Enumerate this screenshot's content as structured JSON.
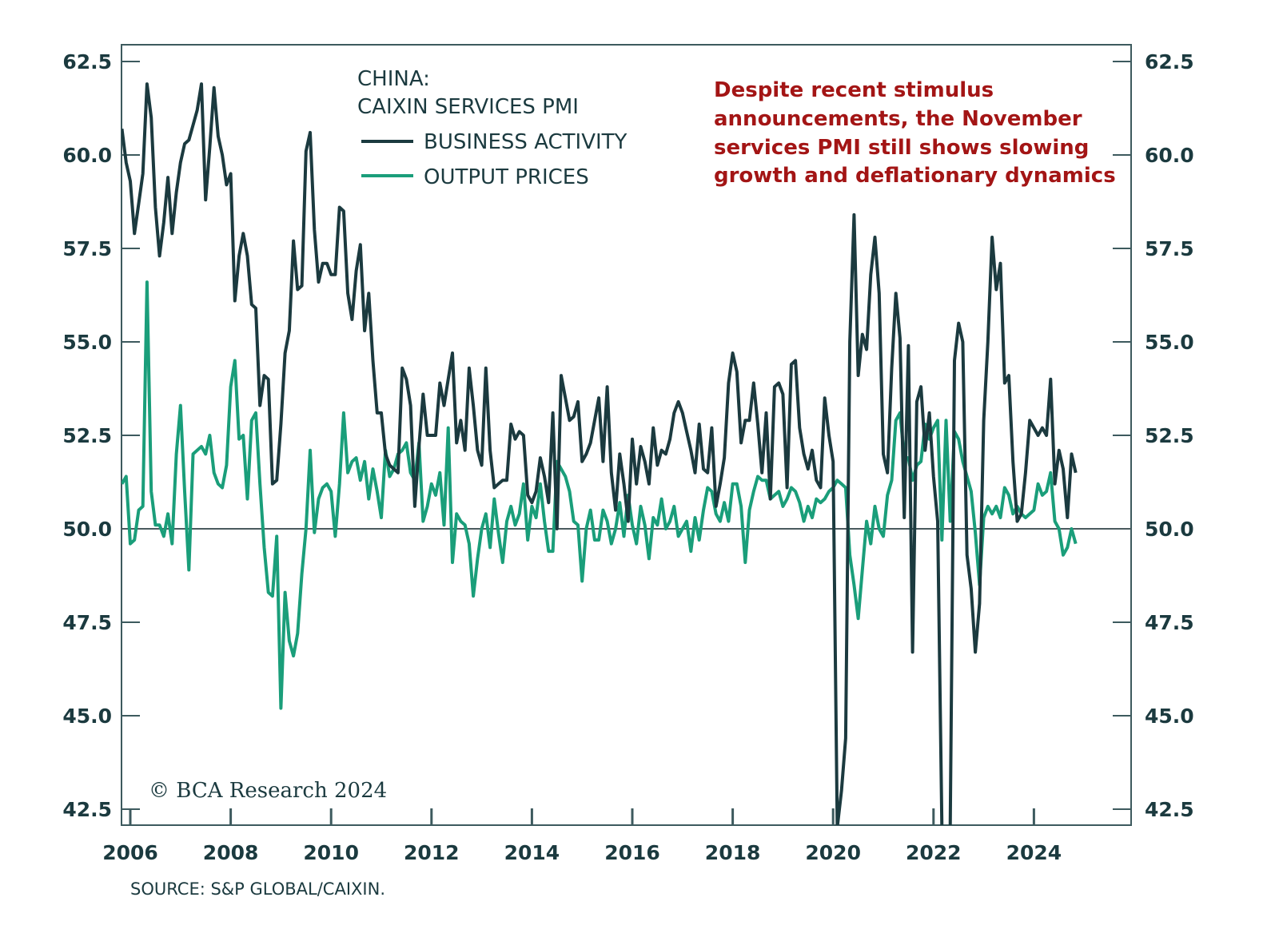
{
  "chart_data": {
    "type": "line",
    "title": "CHINA:",
    "subtitle": "CAIXIN SERVICES PMI",
    "annotation": [
      "Despite recent stimulus",
      "announcements, the November",
      "services PMI still shows slowing",
      "growth and deflationary dynamics"
    ],
    "source": "SOURCE: S&P GLOBAL/CAIXIN.",
    "watermark": "© BCA Research 2024",
    "x_start": "2005-11",
    "x_end": "2024-11",
    "x_frequency": "monthly",
    "x_ticks": [
      "2006",
      "2008",
      "2010",
      "2012",
      "2014",
      "2016",
      "2018",
      "2020",
      "2022",
      "2024"
    ],
    "y_ticks": [
      "42.5",
      "45.0",
      "47.5",
      "50.0",
      "52.5",
      "55.0",
      "57.5",
      "60.0",
      "62.5"
    ],
    "ylim": [
      42.5,
      62.5
    ],
    "reference_line": 50.0,
    "dual_axis_same_scale": true,
    "grid": false,
    "legend_position": "top-center",
    "series": [
      {
        "name": "BUSINESS ACTIVITY",
        "color": "#1b3a3f",
        "values": [
          60.7,
          59.8,
          59.3,
          57.9,
          58.7,
          59.5,
          61.9,
          61.0,
          58.6,
          57.3,
          58.2,
          59.4,
          57.9,
          59.0,
          59.8,
          60.3,
          60.4,
          60.8,
          61.2,
          61.9,
          58.8,
          60.2,
          61.8,
          60.5,
          60.0,
          59.2,
          59.5,
          56.1,
          57.3,
          57.9,
          57.3,
          56.0,
          55.9,
          53.3,
          54.1,
          54.0,
          51.2,
          51.3,
          52.8,
          54.7,
          55.3,
          57.7,
          56.4,
          56.5,
          60.1,
          60.6,
          58.0,
          56.6,
          57.1,
          57.1,
          56.8,
          56.8,
          58.6,
          58.5,
          56.3,
          55.6,
          56.9,
          57.6,
          55.3,
          56.3,
          54.5,
          53.1,
          53.1,
          52.0,
          51.7,
          51.6,
          51.5,
          54.3,
          54.0,
          53.3,
          50.6,
          52.2,
          53.6,
          52.5,
          52.5,
          52.5,
          53.9,
          53.3,
          54.0,
          54.7,
          52.3,
          52.9,
          52.1,
          54.3,
          53.3,
          52.1,
          51.7,
          54.3,
          52.1,
          51.1,
          51.2,
          51.3,
          51.3,
          52.8,
          52.4,
          52.6,
          52.5,
          50.9,
          50.7,
          51.0,
          51.9,
          51.4,
          50.7,
          53.1,
          50.0,
          54.1,
          53.5,
          52.9,
          53.0,
          53.4,
          51.8,
          52.0,
          52.3,
          52.9,
          53.5,
          51.8,
          53.8,
          51.5,
          50.5,
          52.0,
          51.2,
          50.2,
          52.4,
          51.2,
          52.2,
          51.8,
          51.2,
          52.7,
          51.7,
          52.1,
          52.0,
          52.4,
          53.1,
          53.4,
          53.1,
          52.6,
          52.1,
          51.5,
          52.8,
          51.6,
          51.5,
          52.7,
          50.6,
          51.2,
          51.9,
          53.9,
          54.7,
          54.2,
          52.3,
          52.9,
          52.9,
          53.9,
          52.8,
          51.5,
          53.1,
          50.8,
          53.8,
          53.9,
          53.6,
          51.1,
          54.4,
          54.5,
          52.7,
          52.0,
          51.6,
          52.1,
          51.3,
          51.1,
          53.5,
          52.5,
          51.8,
          26.5,
          43.0,
          44.4,
          55.0,
          58.4,
          54.1,
          55.2,
          54.8,
          56.8,
          57.8,
          56.3,
          52.0,
          51.5,
          54.3,
          56.3,
          55.1,
          50.3,
          54.9,
          46.7,
          53.4,
          53.8,
          52.1,
          53.1,
          51.4,
          50.2,
          42.0,
          36.2,
          41.4,
          54.5,
          55.5,
          55.0,
          49.3,
          48.4,
          46.7,
          48.0,
          52.9,
          55.0,
          57.8,
          56.4,
          57.1,
          53.9,
          54.1,
          51.8,
          50.2,
          50.4,
          51.5,
          52.9,
          52.7,
          52.5,
          52.7,
          52.5,
          54.0,
          51.2,
          52.1,
          51.6,
          50.3,
          52.0,
          51.5
        ]
      },
      {
        "name": "OUTPUT PRICES",
        "color": "#1a9e7a",
        "values": [
          51.2,
          51.4,
          49.6,
          49.7,
          50.5,
          50.6,
          56.6,
          51.0,
          50.1,
          50.1,
          49.8,
          50.4,
          49.6,
          52.0,
          53.3,
          51.0,
          48.9,
          52.0,
          52.1,
          52.2,
          52.0,
          52.5,
          51.5,
          51.2,
          51.1,
          51.7,
          53.8,
          54.5,
          52.4,
          52.5,
          50.8,
          52.9,
          53.1,
          51.2,
          49.5,
          48.3,
          48.2,
          49.8,
          45.2,
          48.3,
          47.0,
          46.6,
          47.2,
          48.8,
          50.0,
          52.1,
          49.9,
          50.8,
          51.1,
          51.2,
          51.0,
          49.8,
          51.2,
          53.1,
          51.5,
          51.8,
          51.9,
          51.3,
          51.8,
          50.8,
          51.6,
          51.0,
          50.3,
          52.1,
          51.4,
          51.6,
          52.0,
          52.1,
          52.3,
          51.5,
          51.3,
          52.3,
          50.2,
          50.6,
          51.2,
          50.9,
          51.5,
          50.1,
          52.7,
          49.1,
          50.4,
          50.2,
          50.1,
          49.6,
          48.2,
          49.2,
          50.0,
          50.4,
          49.5,
          50.8,
          49.9,
          49.1,
          50.2,
          50.6,
          50.1,
          50.4,
          51.2,
          49.7,
          50.6,
          50.3,
          51.2,
          50.2,
          49.4,
          49.4,
          51.8,
          51.6,
          51.4,
          51.0,
          50.2,
          50.1,
          48.6,
          50.0,
          50.5,
          49.7,
          49.7,
          50.5,
          50.2,
          49.6,
          50.0,
          50.7,
          49.8,
          50.9,
          50.1,
          49.6,
          50.6,
          50.1,
          49.2,
          50.3,
          50.1,
          50.8,
          50.0,
          50.2,
          50.6,
          49.8,
          50.0,
          50.2,
          49.4,
          50.3,
          49.7,
          50.5,
          51.1,
          51.0,
          50.4,
          50.2,
          50.7,
          50.2,
          51.2,
          51.2,
          50.6,
          49.1,
          50.5,
          51.0,
          51.4,
          51.3,
          51.3,
          50.8,
          50.9,
          51.0,
          50.6,
          50.8,
          51.1,
          51.0,
          50.7,
          50.2,
          50.6,
          50.3,
          50.8,
          50.7,
          50.8,
          51.0,
          51.1,
          51.3,
          51.2,
          51.1,
          49.3,
          48.5,
          47.6,
          48.9,
          50.2,
          49.6,
          50.6,
          50.0,
          49.8,
          50.9,
          51.3,
          52.9,
          53.1,
          51.9,
          51.9,
          51.3,
          51.7,
          51.8,
          52.8,
          52.4,
          52.7,
          52.9,
          49.7,
          52.9,
          50.2,
          52.6,
          52.4,
          51.8,
          51.4,
          51.0,
          49.9,
          48.5,
          50.3,
          50.6,
          50.4,
          50.6,
          50.3,
          51.1,
          50.9,
          50.4,
          50.6,
          50.4,
          50.3,
          50.4,
          50.5,
          51.2,
          50.9,
          51.0,
          51.5,
          50.2,
          50.0,
          49.3,
          49.5,
          50.0,
          49.6
        ]
      }
    ]
  }
}
